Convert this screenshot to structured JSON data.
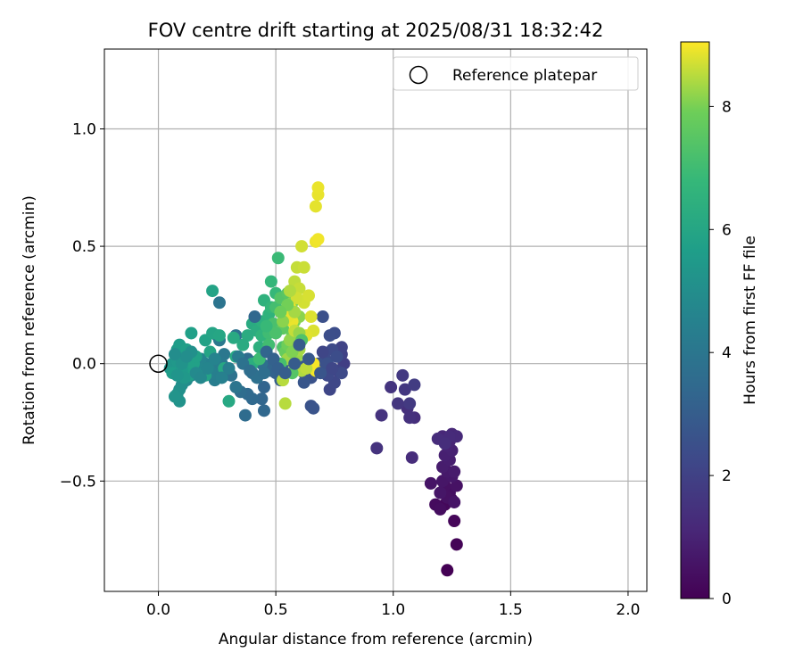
{
  "chart_data": {
    "type": "scatter",
    "title": "FOV centre drift starting at 2025/08/31 18:32:42",
    "xlabel": "Angular distance from reference (arcmin)",
    "ylabel": "Rotation from reference (arcmin)",
    "xlim": [
      -0.23,
      2.08
    ],
    "ylim": [
      -0.97,
      1.34
    ],
    "xticks": [
      {
        "value": 0.0,
        "label": "0.0"
      },
      {
        "value": 0.5,
        "label": "0.5"
      },
      {
        "value": 1.0,
        "label": "1.0"
      },
      {
        "value": 1.5,
        "label": "1.5"
      },
      {
        "value": 2.0,
        "label": "2.0"
      }
    ],
    "yticks": [
      {
        "value": -0.5,
        "label": "−0.5"
      },
      {
        "value": 0.0,
        "label": "0.0"
      },
      {
        "value": 0.5,
        "label": "0.5"
      },
      {
        "value": 1.0,
        "label": "1.0"
      }
    ],
    "grid": true,
    "legend": {
      "position": "top-right",
      "entries": [
        "Reference platepar"
      ]
    },
    "reference_point": {
      "x": 0.0,
      "y": 0.0,
      "name": "Reference platepar"
    },
    "colorbar": {
      "label": "Hours from first FF file",
      "colormap": "viridis",
      "range": [
        0,
        9.05
      ],
      "ticks": [
        {
          "value": 0,
          "label": "0"
        },
        {
          "value": 2,
          "label": "2"
        },
        {
          "value": 4,
          "label": "4"
        },
        {
          "value": 6,
          "label": "6"
        },
        {
          "value": 8,
          "label": "8"
        }
      ]
    },
    "points": [
      [
        1.23,
        -0.88,
        0.0
      ],
      [
        1.27,
        -0.77,
        0.1
      ],
      [
        1.26,
        -0.67,
        0.15
      ],
      [
        1.22,
        -0.6,
        0.2
      ],
      [
        1.25,
        -0.58,
        0.25
      ],
      [
        1.18,
        -0.6,
        0.3
      ],
      [
        1.2,
        -0.62,
        0.35
      ],
      [
        1.24,
        -0.55,
        0.4
      ],
      [
        1.22,
        -0.52,
        0.45
      ],
      [
        1.27,
        -0.52,
        0.5
      ],
      [
        1.16,
        -0.51,
        0.55
      ],
      [
        1.21,
        -0.5,
        0.6
      ],
      [
        1.25,
        -0.48,
        0.65
      ],
      [
        1.23,
        -0.46,
        0.7
      ],
      [
        1.26,
        -0.46,
        0.75
      ],
      [
        1.21,
        -0.44,
        0.8
      ],
      [
        1.24,
        -0.41,
        0.85
      ],
      [
        1.22,
        -0.39,
        0.9
      ],
      [
        1.25,
        -0.37,
        0.95
      ],
      [
        1.23,
        -0.35,
        1.0
      ],
      [
        1.24,
        -0.33,
        1.05
      ],
      [
        1.21,
        -0.31,
        1.1
      ],
      [
        1.25,
        -0.3,
        1.15
      ],
      [
        1.27,
        -0.31,
        1.2
      ],
      [
        1.24,
        -0.31,
        1.25
      ],
      [
        1.19,
        -0.32,
        1.3
      ],
      [
        1.22,
        -0.34,
        1.35
      ],
      [
        1.23,
        -0.57,
        0.45
      ],
      [
        1.26,
        -0.59,
        0.55
      ],
      [
        1.2,
        -0.55,
        0.6
      ],
      [
        1.08,
        -0.4,
        1.3
      ],
      [
        1.09,
        -0.23,
        1.35
      ],
      [
        1.06,
        -0.19,
        1.4
      ],
      [
        1.07,
        -0.23,
        1.45
      ],
      [
        0.95,
        -0.22,
        1.5
      ],
      [
        0.93,
        -0.36,
        1.5
      ],
      [
        0.99,
        -0.1,
        1.55
      ],
      [
        1.02,
        -0.17,
        1.6
      ],
      [
        1.05,
        -0.11,
        1.65
      ],
      [
        1.04,
        -0.05,
        1.7
      ],
      [
        1.07,
        -0.17,
        1.75
      ],
      [
        1.09,
        -0.09,
        1.8
      ],
      [
        0.79,
        0.0,
        1.9
      ],
      [
        0.78,
        0.04,
        2.0
      ],
      [
        0.78,
        0.07,
        2.05
      ],
      [
        0.76,
        -0.03,
        2.1
      ],
      [
        0.73,
        -0.11,
        2.15
      ],
      [
        0.75,
        -0.08,
        2.2
      ],
      [
        0.72,
        -0.05,
        2.25
      ],
      [
        0.74,
        0.06,
        2.3
      ],
      [
        0.71,
        0.02,
        2.35
      ],
      [
        0.75,
        0.13,
        2.4
      ],
      [
        0.73,
        0.12,
        2.45
      ],
      [
        0.7,
        0.2,
        2.5
      ],
      [
        0.68,
        0.0,
        2.55
      ],
      [
        0.65,
        -0.06,
        2.6
      ],
      [
        0.65,
        -0.18,
        2.6
      ],
      [
        0.66,
        -0.19,
        2.65
      ],
      [
        0.62,
        -0.04,
        2.7
      ],
      [
        0.62,
        -0.08,
        2.75
      ],
      [
        0.6,
        -0.01,
        2.8
      ],
      [
        0.57,
        0.01,
        2.85
      ],
      [
        0.55,
        0.04,
        2.9
      ],
      [
        0.53,
        0.0,
        3.0
      ],
      [
        0.52,
        -0.07,
        3.05
      ],
      [
        0.5,
        -0.04,
        3.1
      ],
      [
        0.48,
        -0.03,
        3.2
      ],
      [
        0.46,
        -0.01,
        3.25
      ],
      [
        0.45,
        -0.1,
        3.3
      ],
      [
        0.44,
        -0.15,
        3.35
      ],
      [
        0.45,
        -0.2,
        3.4
      ],
      [
        0.4,
        -0.15,
        3.45
      ],
      [
        0.38,
        -0.13,
        3.5
      ],
      [
        0.37,
        -0.22,
        3.55
      ],
      [
        0.35,
        -0.12,
        3.6
      ],
      [
        0.38,
        0.02,
        3.6
      ],
      [
        0.42,
        0.01,
        3.65
      ],
      [
        0.4,
        -0.04,
        3.7
      ],
      [
        0.44,
        0.0,
        3.75
      ],
      [
        0.33,
        0.12,
        3.8
      ],
      [
        0.31,
        -0.05,
        3.85
      ],
      [
        0.26,
        0.26,
        3.9
      ],
      [
        0.25,
        0.12,
        4.0
      ],
      [
        0.28,
        0.04,
        4.05
      ],
      [
        0.26,
        0.1,
        4.1
      ],
      [
        0.27,
        0.0,
        4.15
      ],
      [
        0.27,
        -0.03,
        4.2
      ],
      [
        0.25,
        -0.02,
        4.25
      ],
      [
        0.24,
        -0.07,
        4.3
      ],
      [
        0.23,
        -0.04,
        4.35
      ],
      [
        0.22,
        -0.03,
        4.4
      ],
      [
        0.2,
        0.0,
        4.5
      ],
      [
        0.18,
        0.02,
        4.6
      ],
      [
        0.17,
        -0.02,
        4.7
      ],
      [
        0.14,
        -0.05,
        4.8
      ],
      [
        0.12,
        -0.07,
        4.9
      ],
      [
        0.1,
        -0.09,
        5.0
      ],
      [
        0.09,
        -0.11,
        5.1
      ],
      [
        0.08,
        -0.13,
        5.15
      ],
      [
        0.09,
        -0.16,
        5.2
      ],
      [
        0.07,
        -0.14,
        5.25
      ],
      [
        0.05,
        -0.02,
        5.3
      ],
      [
        0.06,
        0.0,
        5.35
      ],
      [
        0.08,
        0.01,
        5.4
      ],
      [
        0.09,
        0.03,
        5.45
      ],
      [
        0.1,
        0.05,
        5.5
      ],
      [
        0.08,
        0.06,
        5.55
      ],
      [
        0.09,
        0.08,
        5.6
      ],
      [
        0.11,
        0.02,
        5.65
      ],
      [
        0.12,
        -0.02,
        5.7
      ],
      [
        0.13,
        -0.05,
        5.75
      ],
      [
        0.15,
        0.0,
        5.8
      ],
      [
        0.2,
        0.1,
        5.85
      ],
      [
        0.23,
        0.31,
        5.9
      ],
      [
        0.23,
        0.13,
        5.95
      ],
      [
        0.26,
        0.12,
        6.0
      ],
      [
        0.28,
        -0.02,
        6.05
      ],
      [
        0.3,
        -0.16,
        6.1
      ],
      [
        0.32,
        0.11,
        6.15
      ],
      [
        0.4,
        0.17,
        6.2
      ],
      [
        0.42,
        0.14,
        6.3
      ],
      [
        0.4,
        0.0,
        6.35
      ],
      [
        0.43,
        0.07,
        6.4
      ],
      [
        0.44,
        0.18,
        6.45
      ],
      [
        0.45,
        0.27,
        6.5
      ],
      [
        0.47,
        0.21,
        6.55
      ],
      [
        0.44,
        0.12,
        6.6
      ],
      [
        0.46,
        0.06,
        6.65
      ],
      [
        0.48,
        0.24,
        6.7
      ],
      [
        0.48,
        0.35,
        6.75
      ],
      [
        0.5,
        0.3,
        6.8
      ],
      [
        0.51,
        0.45,
        6.9
      ],
      [
        0.47,
        0.13,
        7.0
      ],
      [
        0.5,
        0.24,
        7.1
      ],
      [
        0.49,
        0.17,
        7.2
      ],
      [
        0.53,
        0.07,
        7.3
      ],
      [
        0.52,
        0.28,
        7.4
      ],
      [
        0.55,
        0.3,
        7.5
      ],
      [
        0.53,
        0.15,
        7.6
      ],
      [
        0.56,
        0.22,
        7.7
      ],
      [
        0.54,
        0.05,
        7.75
      ],
      [
        0.57,
        0.12,
        7.8
      ],
      [
        0.55,
        0.08,
        7.9
      ],
      [
        0.58,
        0.18,
        8.0
      ],
      [
        0.57,
        0.26,
        8.1
      ],
      [
        0.6,
        0.2,
        8.15
      ],
      [
        0.56,
        0.1,
        8.2
      ],
      [
        0.59,
        0.03,
        8.25
      ],
      [
        0.55,
        0.02,
        8.3
      ],
      [
        0.6,
        0.06,
        8.35
      ],
      [
        0.58,
        -0.02,
        8.4
      ],
      [
        0.61,
        -0.03,
        8.45
      ],
      [
        0.53,
        -0.07,
        8.5
      ],
      [
        0.54,
        -0.17,
        8.5
      ],
      [
        0.58,
        0.35,
        8.55
      ],
      [
        0.59,
        0.41,
        8.6
      ],
      [
        0.6,
        0.32,
        8.62
      ],
      [
        0.62,
        0.41,
        8.65
      ],
      [
        0.61,
        0.5,
        8.7
      ],
      [
        0.62,
        0.26,
        8.72
      ],
      [
        0.64,
        0.29,
        8.75
      ],
      [
        0.66,
        0.14,
        8.78
      ],
      [
        0.65,
        0.2,
        8.8
      ],
      [
        0.63,
        0.12,
        8.82
      ],
      [
        0.67,
        0.67,
        8.85
      ],
      [
        0.68,
        0.72,
        8.88
      ],
      [
        0.68,
        0.75,
        8.9
      ],
      [
        0.67,
        0.52,
        8.92
      ],
      [
        0.68,
        0.53,
        8.95
      ],
      [
        0.67,
        -0.03,
        8.97
      ],
      [
        0.66,
        0.0,
        9.0
      ],
      [
        0.56,
        0.24,
        9.0
      ],
      [
        0.57,
        0.18,
        8.9
      ],
      [
        0.55,
        0.2,
        8.85
      ],
      [
        0.59,
        0.28,
        8.7
      ],
      [
        0.58,
        0.14,
        8.6
      ],
      [
        0.63,
        -0.02,
        8.55
      ],
      [
        0.56,
        0.31,
        8.45
      ],
      [
        0.58,
        0.22,
        8.35
      ],
      [
        0.6,
        0.13,
        8.25
      ],
      [
        0.53,
        0.18,
        8.15
      ],
      [
        0.57,
        0.05,
        8.05
      ],
      [
        0.55,
        0.25,
        7.95
      ],
      [
        0.52,
        0.22,
        7.85
      ],
      [
        0.57,
        -0.04,
        7.45
      ],
      [
        0.61,
        0.1,
        7.35
      ],
      [
        0.5,
        0.13,
        7.25
      ],
      [
        0.52,
        0.0,
        7.15
      ],
      [
        0.47,
        0.08,
        7.05
      ],
      [
        0.43,
        0.02,
        6.95
      ],
      [
        0.46,
        0.16,
        6.85
      ],
      [
        0.38,
        0.12,
        6.25
      ],
      [
        0.36,
        0.08,
        6.2
      ],
      [
        0.33,
        0.03,
        6.1
      ],
      [
        0.22,
        0.05,
        5.95
      ],
      [
        0.2,
        -0.05,
        5.9
      ],
      [
        0.16,
        0.03,
        5.8
      ],
      [
        0.14,
        0.13,
        5.75
      ],
      [
        0.12,
        0.06,
        5.7
      ],
      [
        0.06,
        -0.04,
        5.6
      ],
      [
        0.1,
        -0.03,
        5.5
      ],
      [
        0.11,
        -0.06,
        5.4
      ],
      [
        0.08,
        -0.05,
        5.3
      ],
      [
        0.1,
        0.0,
        5.2
      ],
      [
        0.14,
        0.05,
        5.1
      ],
      [
        0.12,
        0.03,
        5.0
      ],
      [
        0.07,
        0.04,
        4.95
      ],
      [
        0.16,
        -0.04,
        4.85
      ],
      [
        0.18,
        -0.06,
        4.75
      ],
      [
        0.21,
        -0.02,
        4.65
      ],
      [
        0.24,
        0.02,
        4.55
      ],
      [
        0.27,
        -0.06,
        4.45
      ],
      [
        0.3,
        -0.02,
        4.35
      ],
      [
        0.34,
        0.03,
        4.2
      ],
      [
        0.33,
        -0.1,
        3.95
      ],
      [
        0.36,
        0.0,
        3.85
      ],
      [
        0.42,
        -0.06,
        3.75
      ],
      [
        0.45,
        -0.04,
        3.7
      ],
      [
        0.39,
        -0.03,
        3.65
      ],
      [
        0.41,
        0.2,
        3.4
      ],
      [
        0.46,
        0.05,
        3.3
      ],
      [
        0.49,
        0.02,
        3.15
      ],
      [
        0.51,
        -0.02,
        3.1
      ],
      [
        0.54,
        -0.04,
        3.0
      ],
      [
        0.58,
        0.0,
        2.95
      ],
      [
        0.6,
        0.08,
        2.9
      ],
      [
        0.64,
        0.02,
        2.8
      ],
      [
        0.69,
        -0.04,
        2.7
      ],
      [
        0.72,
        0.0,
        2.55
      ],
      [
        0.76,
        0.03,
        2.4
      ],
      [
        0.78,
        -0.04,
        2.3
      ],
      [
        0.74,
        -0.02,
        2.2
      ],
      [
        0.7,
        0.05,
        2.15
      ]
    ]
  }
}
